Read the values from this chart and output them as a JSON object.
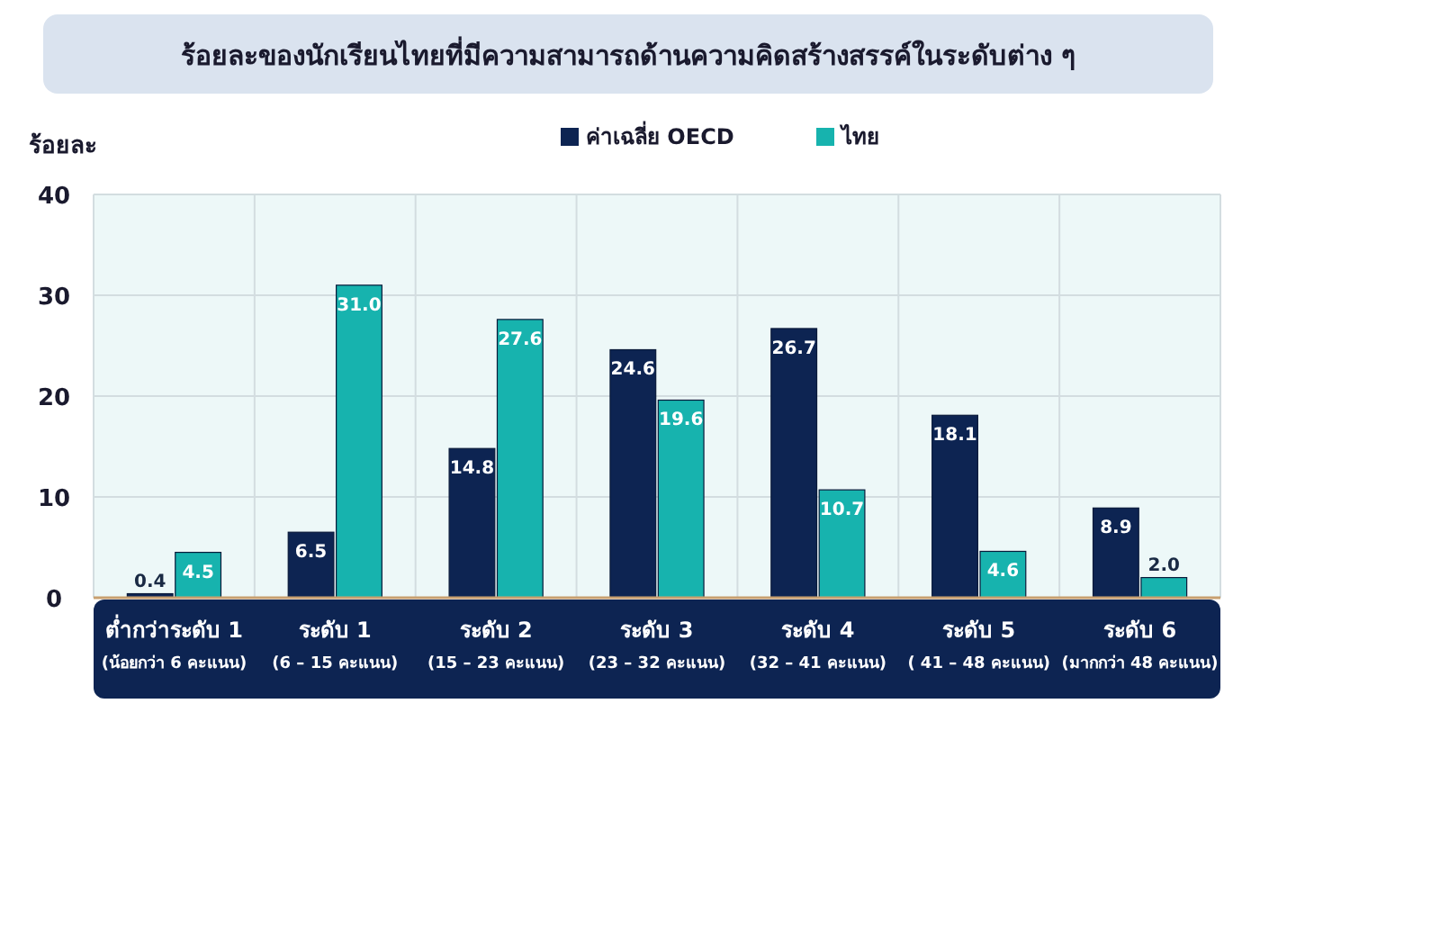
{
  "chart_data": {
    "type": "bar",
    "title": "ร้อยละของนักเรียนไทยที่มีความสามารถด้านความคิดสร้างสรรค์ในระดับต่าง ๆ",
    "ylabel": "ร้อยละ",
    "categories": [
      "ต่ำกว่าระดับ 1\n(น้อยกว่า 6 คะแนน)",
      "ระดับ 1\n(6 – 15 คะแนน)",
      "ระดับ 2\n(15 – 23 คะแนน)",
      "ระดับ 3\n(23 – 32 คะแนน)",
      "ระดับ 4\n(32 – 41 คะแนน)",
      "ระดับ 5\n( 41 – 48 คะแนน)",
      "ระดับ 6\n(มากกว่า  48 คะแนน)"
    ],
    "series": [
      {
        "name": "ค่าเฉลี่ย OECD",
        "color": "#0d2452",
        "values": [
          0.4,
          6.5,
          14.8,
          24.6,
          26.7,
          18.1,
          8.9
        ],
        "value_labels": [
          "0.4",
          "6.5",
          "14.8",
          "24.6",
          "26.7",
          "18.1",
          "8.9"
        ]
      },
      {
        "name": "ไทย",
        "color": "#17b3ae",
        "values": [
          4.5,
          31,
          27.6,
          19.6,
          10.7,
          4.6,
          2
        ],
        "value_labels": [
          "4.5",
          "31.0",
          "27.6",
          "19.6",
          "10.7",
          "4.6",
          "2.0"
        ]
      }
    ],
    "ylim": [
      0,
      40
    ],
    "yticks": [
      0,
      10,
      20,
      30,
      40
    ],
    "grid": true,
    "legend": "top"
  }
}
